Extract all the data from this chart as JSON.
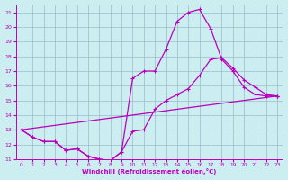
{
  "bg_color": "#cceef0",
  "line_color": "#bb00bb",
  "grid_color": "#99bbcc",
  "xlabel": "Windchill (Refroidissement éolien,°C)",
  "xlim": [
    -0.5,
    23.5
  ],
  "ylim": [
    11,
    21.5
  ],
  "yticks": [
    11,
    12,
    13,
    14,
    15,
    16,
    17,
    18,
    19,
    20,
    21
  ],
  "xticks": [
    0,
    1,
    2,
    3,
    4,
    5,
    6,
    7,
    8,
    9,
    10,
    11,
    12,
    13,
    14,
    15,
    16,
    17,
    18,
    19,
    20,
    21,
    22,
    23
  ],
  "line1_x": [
    0,
    1,
    2,
    3,
    4,
    5,
    6,
    7,
    8,
    9,
    10,
    11,
    12,
    13,
    14,
    15,
    16,
    17,
    18,
    19,
    20,
    21,
    22,
    23
  ],
  "line1_y": [
    13.0,
    12.5,
    12.2,
    12.2,
    11.6,
    11.7,
    11.2,
    11.0,
    10.9,
    11.5,
    16.5,
    17.0,
    17.0,
    18.5,
    20.4,
    21.0,
    21.2,
    19.9,
    17.8,
    17.0,
    15.9,
    15.4,
    15.3,
    15.3
  ],
  "line2_x": [
    0,
    1,
    2,
    3,
    4,
    5,
    6,
    7,
    8,
    9,
    10,
    11,
    12,
    13,
    14,
    15,
    16,
    17,
    18,
    19,
    20,
    21,
    22,
    23
  ],
  "line2_y": [
    13.0,
    12.5,
    12.2,
    12.2,
    11.6,
    11.7,
    11.2,
    11.0,
    10.9,
    11.5,
    12.9,
    13.0,
    14.4,
    15.0,
    15.4,
    15.8,
    16.7,
    17.8,
    17.9,
    17.2,
    16.4,
    15.9,
    15.4,
    15.3
  ],
  "line3_x": [
    0,
    23
  ],
  "line3_y": [
    13.0,
    15.3
  ]
}
